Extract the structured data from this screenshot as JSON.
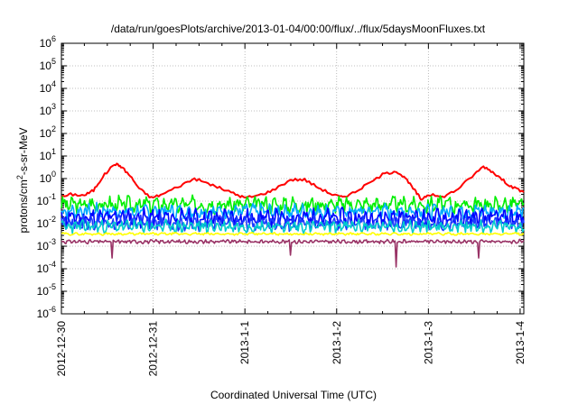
{
  "chart_data": {
    "type": "line",
    "title": "/data/run/goesPlots/archive/2013-01-04/00:00/flux/../flux/5daysMoonFluxes.txt",
    "xlabel": "Coordinated Universal Time (UTC)",
    "ylabel": {
      "prefix": "protons/cm",
      "superscript": "2",
      "suffix": "-s-sr-MeV"
    },
    "yscale": "log",
    "ylim_exponents": [
      -6,
      6
    ],
    "ytick_exponents": [
      -6,
      -5,
      -4,
      -3,
      -2,
      -1,
      0,
      1,
      2,
      3,
      4,
      5,
      6
    ],
    "ytick_base": "10",
    "xlim_days": [
      0,
      5.04
    ],
    "xticks": [
      {
        "x": 0,
        "label": "2012-12-30"
      },
      {
        "x": 1,
        "label": "2012-12-31"
      },
      {
        "x": 2,
        "label": "2013-1-1"
      },
      {
        "x": 3,
        "label": "2013-1-2"
      },
      {
        "x": 4,
        "label": "2013-1-3"
      },
      {
        "x": 5,
        "label": "2013-1-4"
      }
    ],
    "grid": true,
    "legend": "none",
    "series": [
      {
        "color": "#ff0000",
        "points": [
          [
            0,
            0.15
          ],
          [
            0.1,
            0.2
          ],
          [
            0.25,
            0.18
          ],
          [
            0.35,
            0.3
          ],
          [
            0.45,
            1.2
          ],
          [
            0.58,
            4.5
          ],
          [
            0.65,
            3.5
          ],
          [
            0.75,
            1.3
          ],
          [
            0.85,
            0.35
          ],
          [
            0.98,
            0.14
          ],
          [
            1.1,
            0.2
          ],
          [
            1.3,
            0.5
          ],
          [
            1.45,
            1.0
          ],
          [
            1.6,
            0.6
          ],
          [
            1.75,
            0.35
          ],
          [
            1.9,
            0.2
          ],
          [
            2.0,
            0.14
          ],
          [
            2.15,
            0.18
          ],
          [
            2.3,
            0.3
          ],
          [
            2.5,
            0.9
          ],
          [
            2.65,
            0.9
          ],
          [
            2.8,
            0.4
          ],
          [
            2.95,
            0.2
          ],
          [
            3.05,
            0.15
          ],
          [
            3.15,
            0.2
          ],
          [
            3.3,
            0.45
          ],
          [
            3.5,
            1.5
          ],
          [
            3.65,
            2.2
          ],
          [
            3.75,
            1.0
          ],
          [
            3.85,
            0.3
          ],
          [
            3.92,
            0.12
          ],
          [
            4.0,
            0.2
          ],
          [
            4.15,
            0.15
          ],
          [
            4.3,
            0.3
          ],
          [
            4.45,
            1.0
          ],
          [
            4.6,
            3.5
          ],
          [
            4.7,
            2.0
          ],
          [
            4.82,
            0.8
          ],
          [
            4.92,
            0.4
          ],
          [
            5.04,
            0.25
          ]
        ]
      },
      {
        "color": "#00ee00",
        "base": 0.07,
        "spread": 0.55,
        "period": 0.05,
        "seed": 3
      },
      {
        "color": "#00aaff",
        "base": 0.035,
        "spread": 0.5,
        "period": 0.045,
        "seed": 7
      },
      {
        "color": "#0000ff",
        "base": 0.018,
        "spread": 0.6,
        "period": 0.04,
        "seed": 11
      },
      {
        "color": "#1a3cff",
        "base": 0.011,
        "spread": 0.5,
        "period": 0.038,
        "seed": 17
      },
      {
        "color": "#00cccc",
        "base": 0.0075,
        "spread": 0.4,
        "period": 0.035,
        "seed": 23
      },
      {
        "color": "#ffff00",
        "base": 0.0035,
        "spread": 0.08,
        "period": 0.06,
        "seed": 29
      },
      {
        "color": "#993366",
        "base": 0.0016,
        "spread": 0.12,
        "period": 0.03,
        "seed": 31,
        "dips": [
          [
            0.55,
            0.0003
          ],
          [
            2.5,
            0.0004
          ],
          [
            3.65,
            0.00012
          ],
          [
            4.55,
            0.0003
          ]
        ]
      }
    ]
  }
}
